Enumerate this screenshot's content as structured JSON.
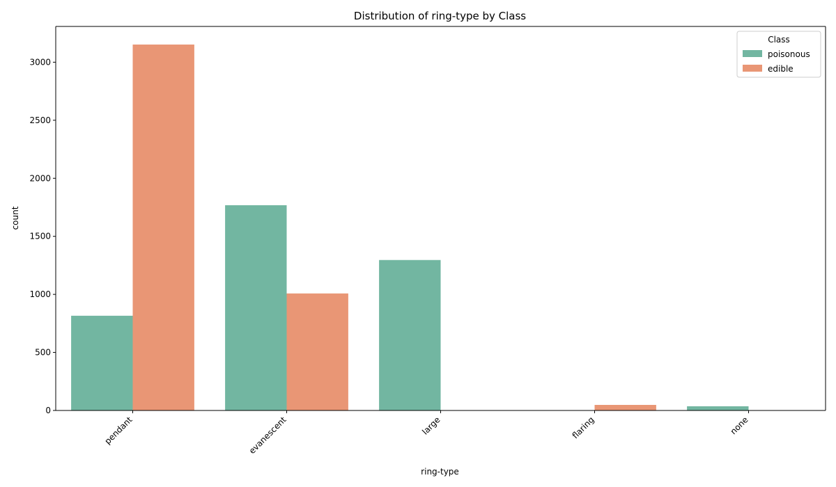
{
  "chart_data": {
    "type": "bar",
    "title": "Distribution of ring-type by Class",
    "xlabel": "ring-type",
    "ylabel": "count",
    "categories": [
      "pendant",
      "evanescent",
      "large",
      "flaring",
      "none"
    ],
    "series": [
      {
        "name": "poisonous",
        "color": "#72b6a1",
        "values": [
          816,
          1768,
          1296,
          0,
          36
        ]
      },
      {
        "name": "edible",
        "color": "#e99675",
        "values": [
          3152,
          1008,
          0,
          48,
          0
        ]
      }
    ],
    "ylim": [
      0,
      3308
    ],
    "yticks": [
      0,
      500,
      1000,
      1500,
      2000,
      2500,
      3000
    ],
    "grid": false,
    "legend": {
      "title": "Class",
      "placement": "top-right"
    }
  }
}
